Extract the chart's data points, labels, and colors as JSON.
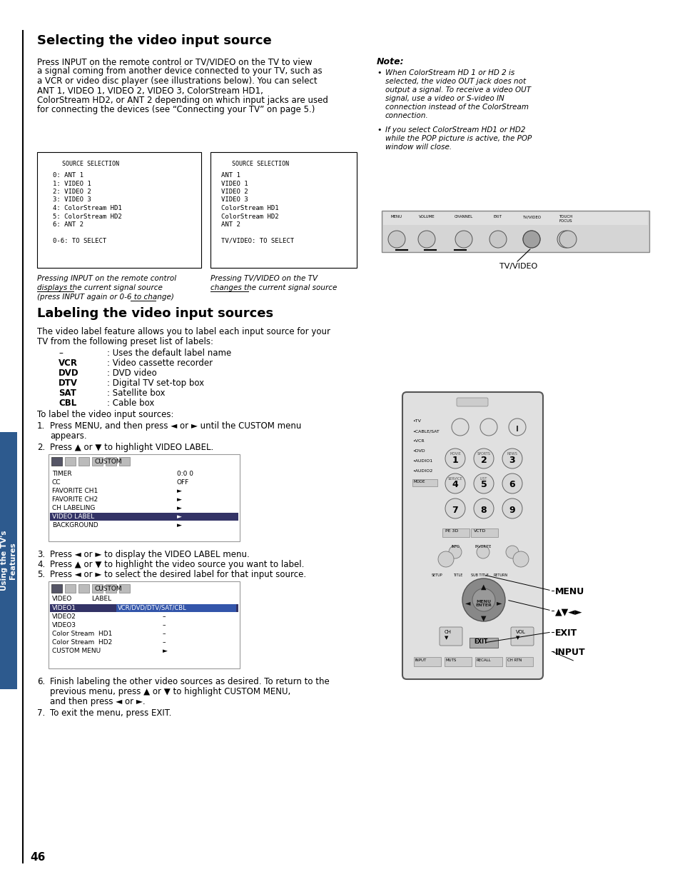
{
  "bg_color": "#ffffff",
  "page_number": "46",
  "sidebar_color": "#2d5a8e",
  "sidebar_text": "Using the TV's\nFeatures",
  "title1": "Selecting the video input source",
  "title2": "Labeling the video input sources",
  "para1_lines": [
    "Press INPUT on the remote control or TV/VIDEO on the TV to view",
    "a signal coming from another device connected to your TV, such as",
    "a VCR or video disc player (see illustrations below). You can select",
    "ANT 1, VIDEO 1, VIDEO 2, VIDEO 3, ColorStream HD1,",
    "ColorStream HD2, or ANT 2 depending on which input jacks are used",
    "for connecting the devices (see “Connecting your TV” on page 5.)"
  ],
  "note_title": "Note:",
  "note1_lines": [
    "When ColorStream HD 1 or HD 2 is",
    "selected, the video OUT jack does not",
    "output a signal. To receive a video OUT",
    "signal, use a video or S-video IN",
    "connection instead of the ColorStream",
    "connection."
  ],
  "note2_lines": [
    "If you select ColorStream HD1 or HD2",
    "while the POP picture is active, the POP",
    "window will close."
  ],
  "tv_video_label": "TV/VIDEO",
  "box1_title": "SOURCE SELECTION",
  "box1_lines": [
    "0: ANT 1",
    "1: VIDEO 1",
    "2: VIDEO 2",
    "3: VIDEO 3",
    "4: ColorStream HD1",
    "5: ColorStream HD2",
    "6: ANT 2",
    "",
    "0-6: TO SELECT"
  ],
  "box2_title": "SOURCE SELECTION",
  "box2_lines": [
    "ANT 1",
    "VIDEO 1",
    "VIDEO 2",
    "VIDEO 3",
    "ColorStream HD1",
    "ColorStream HD2",
    "ANT 2",
    "",
    "TV/VIDEO: TO SELECT"
  ],
  "cap1_lines": [
    "Pressing INPUT on the remote control",
    "displays the current signal source",
    "(press INPUT again or 0-6 to change)"
  ],
  "cap1_underlines": [
    "displays",
    "change"
  ],
  "cap2_lines": [
    "Pressing TV/VIDEO on the TV",
    "changes the current signal source"
  ],
  "cap2_underlines": [
    "changes"
  ],
  "label_intro_lines": [
    "The video label feature allows you to label each input source for your",
    "TV from the following preset list of labels:"
  ],
  "label_items": [
    [
      "–",
      "Uses the default label name"
    ],
    [
      "VCR",
      "Video cassette recorder"
    ],
    [
      "DVD",
      "DVD video"
    ],
    [
      "DTV",
      "Digital TV set-top box"
    ],
    [
      "SAT",
      "Satellite box"
    ],
    [
      "CBL",
      "Cable box"
    ]
  ],
  "steps_intro": "To label the video input sources:",
  "step1_lines": [
    "Press MENU, and then press ◄ or ► until the CUSTOM menu",
    "appears."
  ],
  "step2": "Press ▲ or ▼ to highlight VIDEO LABEL.",
  "step3": "Press ◄ or ► to display the VIDEO LABEL menu.",
  "step4": "Press ▲ or ▼ to highlight the video source you want to label.",
  "step5": "Press ◄ or ► to select the desired label for that input source.",
  "step6_lines": [
    "Finish labeling the other video sources as desired. To return to the",
    "previous menu, press ▲ or ▼ to highlight CUSTOM MENU,",
    "and then press ◄ or ►."
  ],
  "step7": "To exit the menu, press EXIT.",
  "menu1_rows": [
    [
      "TIMER",
      "0:0 0"
    ],
    [
      "CC",
      "OFF"
    ],
    [
      "FAVORITE CH1",
      "►"
    ],
    [
      "FAVORITE CH2",
      "►"
    ],
    [
      "CH LABELING",
      "►"
    ],
    [
      "VIDEO LABEL",
      "►"
    ],
    [
      "BACKGROUND",
      "►"
    ]
  ],
  "menu1_highlight": 5,
  "menu2_rows": [
    [
      "VIDEO1",
      "VCR/DVD/DTV/SAT/CBL"
    ],
    [
      "VIDEO2",
      "–"
    ],
    [
      "VIDEO3",
      "–"
    ],
    [
      "Color Stream  HD1",
      "–"
    ],
    [
      "Color Stream  HD2",
      "–"
    ],
    [
      "CUSTOM MENU",
      "►"
    ]
  ],
  "menu2_highlight": 0,
  "menu_side_labels": [
    "MENU",
    "▲▼◄►",
    "EXIT",
    "INPUT"
  ],
  "panel_labels": [
    "MENU",
    "VOLUME",
    "CHANNEL",
    "EXIT",
    "TV/VIDEO",
    "TOUCH\nFOCUS"
  ]
}
